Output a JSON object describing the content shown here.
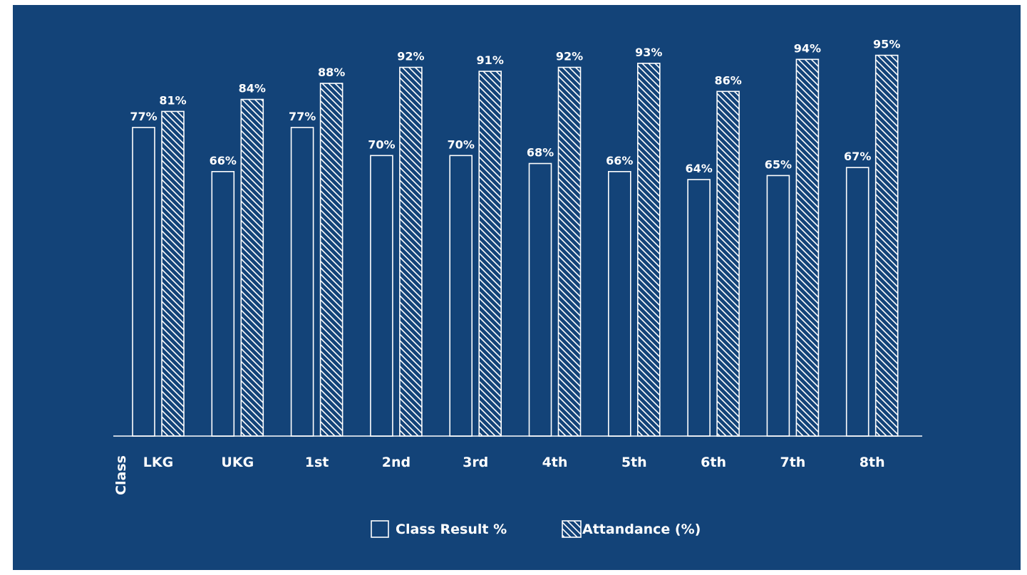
{
  "colors": {
    "background": "#134378",
    "foreground": "#ffffff"
  },
  "chart_data": {
    "type": "bar",
    "categories": [
      "LKG",
      "UKG",
      "1st",
      "2nd",
      "3rd",
      "4th",
      "5th",
      "6th",
      "7th",
      "8th"
    ],
    "series": [
      {
        "name": "Class Result %",
        "pattern": "outline",
        "values": [
          77,
          66,
          77,
          70,
          70,
          68,
          66,
          64,
          65,
          67
        ],
        "labels": [
          "77%",
          "66%",
          "77%",
          "70%",
          "70%",
          "68%",
          "66%",
          "64%",
          "65%",
          "67%"
        ]
      },
      {
        "name": "Attandance (%)",
        "pattern": "diagonal-hatch",
        "values": [
          81,
          84,
          88,
          92,
          91,
          92,
          93,
          86,
          94,
          95
        ],
        "labels": [
          "81%",
          "84%",
          "88%",
          "92%",
          "91%",
          "92%",
          "93%",
          "86%",
          "94%",
          "95%"
        ]
      }
    ],
    "title": "",
    "xlabel": "Class",
    "ylabel": "",
    "ylim": [
      0,
      100
    ],
    "grid": false,
    "legend_position": "bottom-center"
  }
}
